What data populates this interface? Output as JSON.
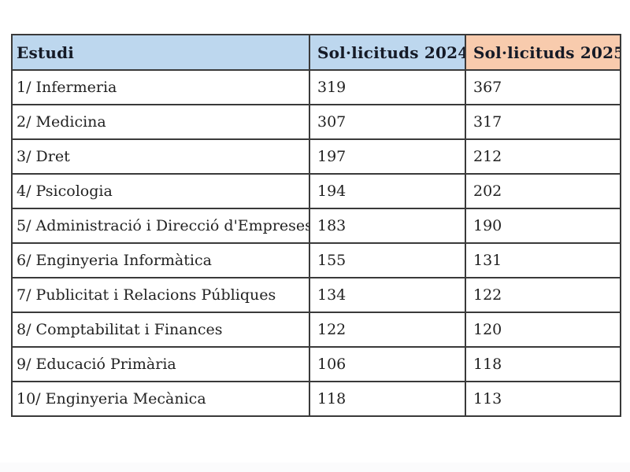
{
  "document": {
    "table": {
      "headers": [
        "Estudi",
        "Sol·licituds 2024",
        "Sol·licituds 2025"
      ],
      "rows": [
        [
          "1/ Infermeria",
          "319",
          "367"
        ],
        [
          "2/ Medicina",
          "307",
          "317"
        ],
        [
          "3/ Dret",
          "197",
          "212"
        ],
        [
          "4/ Psicologia",
          "194",
          "202"
        ],
        [
          "5/ Administració i Direcció d'Empreses",
          "183",
          "190"
        ],
        [
          "6/ Enginyeria Informàtica",
          "155",
          "131"
        ],
        [
          "7/ Publicitat i Relacions Públiques",
          "134",
          "122"
        ],
        [
          "8/ Comptabilitat i Finances",
          "122",
          "120"
        ],
        [
          "9/ Educació Primària",
          "106",
          "118"
        ],
        [
          "10/ Enginyeria Mecànica",
          "118",
          "113"
        ]
      ]
    },
    "colors": {
      "header_blue": "#bdd7ee",
      "header_peach": "#f8cbad",
      "border": "#3a3a3a",
      "header_text": "#151a26",
      "body_text": "#222222",
      "page_bg": "#ffffff"
    }
  }
}
